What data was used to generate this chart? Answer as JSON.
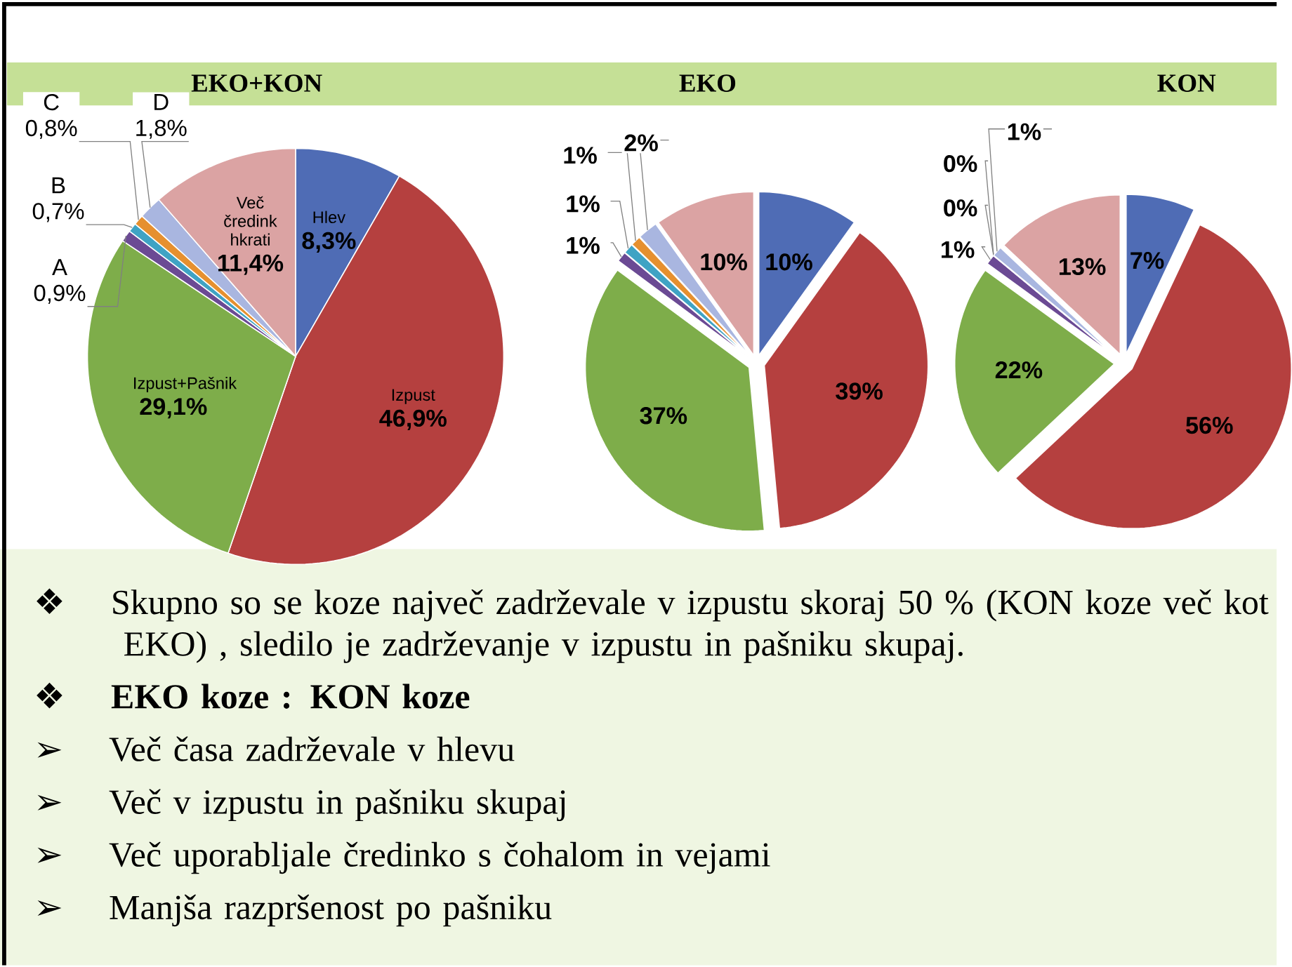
{
  "chart_data": [
    {
      "type": "pie",
      "title": "EKO+KON",
      "categories": [
        "Hlev",
        "Izpust",
        "Izpust+Pašnik",
        "A",
        "B",
        "C",
        "D",
        "Več čredink hkrati"
      ],
      "values": [
        8.3,
        46.9,
        29.1,
        0.9,
        0.7,
        0.8,
        1.8,
        11.4
      ],
      "value_labels": [
        "8,3%",
        "46,9%",
        "29,1%",
        "0,9%",
        "0,7%",
        "0,8%",
        "1,8%",
        "11,4%"
      ],
      "colors": [
        "#4f6cb5",
        "#b5403f",
        "#7ead4a",
        "#6b4a94",
        "#3fa3c4",
        "#e6902f",
        "#a9b6e0",
        "#dba3a3"
      ]
    },
    {
      "type": "pie",
      "title": "EKO",
      "categories": [
        null,
        null,
        null,
        null,
        null,
        null,
        null,
        null
      ],
      "values": [
        10,
        39,
        37,
        1,
        1,
        1,
        2,
        10
      ],
      "value_labels": [
        "10%",
        "39%",
        "37%",
        "1%",
        "1%",
        "1%",
        "2%",
        "10%"
      ],
      "colors": [
        "#4f6cb5",
        "#b5403f",
        "#7ead4a",
        "#6b4a94",
        "#3fa3c4",
        "#e6902f",
        "#a9b6e0",
        "#dba3a3"
      ]
    },
    {
      "type": "pie",
      "title": "KON",
      "categories": [
        null,
        null,
        null,
        null,
        null,
        null,
        null,
        null
      ],
      "values": [
        7,
        56,
        22,
        1,
        0,
        0,
        1,
        13
      ],
      "value_labels": [
        "7%",
        "56%",
        "22%",
        "1%",
        "0%",
        "0%",
        "1%",
        "13%"
      ],
      "colors": [
        "#4f6cb5",
        "#b5403f",
        "#7ead4a",
        "#6b4a94",
        "#3fa3c4",
        "#e6902f",
        "#a9b6e0",
        "#dba3a3"
      ]
    },
    {
      "type": "other",
      "annotations": [
        "❖ Skupno so se koze največ zadrževale v izpustu skoraj 50 % (KON koze več kot EKO) , sledilo je zadrževanje v izpustu in pašniku skupaj.",
        "❖ **EKO koze : KON koze**",
        "➢ Več časa zadrževale v hlevu",
        "➢ Več v izpustu in pašniku skupaj",
        "➢ Več uporabljale čredinko s čohalom in vejami",
        "➢ Manjša razpršenost po pašniku"
      ]
    }
  ]
}
